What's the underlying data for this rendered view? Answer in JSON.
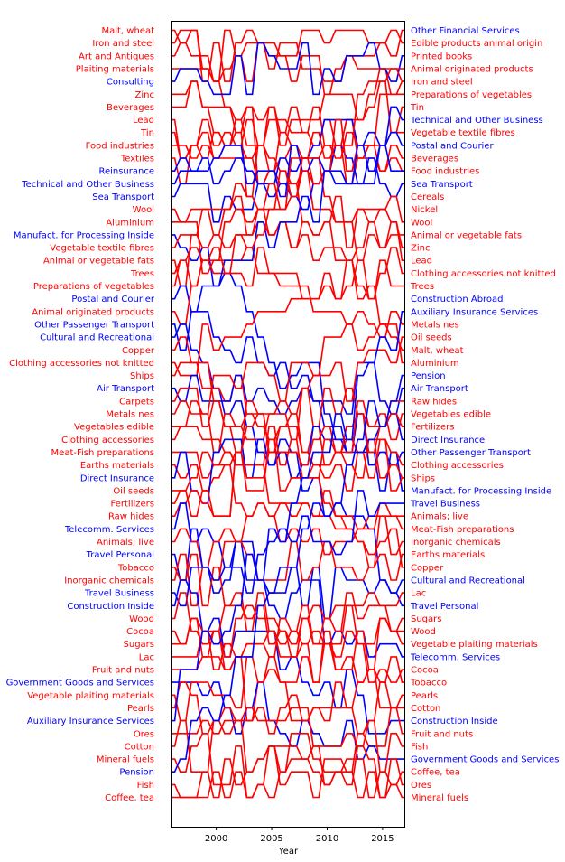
{
  "chart_data": {
    "type": "line",
    "title": "",
    "xlabel": "Year",
    "ylabel": "",
    "xlim": [
      1996,
      2017
    ],
    "x_ticks": [
      2000,
      2005,
      2010,
      2015
    ],
    "grid": false,
    "colors": {
      "goods": "#ff0000",
      "services": "#0000ff"
    },
    "left_labels": [
      {
        "text": "Malt, wheat",
        "kind": "goods"
      },
      {
        "text": "Iron and steel",
        "kind": "goods"
      },
      {
        "text": "Art and Antiques",
        "kind": "goods"
      },
      {
        "text": "Plaiting materials",
        "kind": "goods"
      },
      {
        "text": "Consulting",
        "kind": "services"
      },
      {
        "text": "Zinc",
        "kind": "goods"
      },
      {
        "text": "Beverages",
        "kind": "goods"
      },
      {
        "text": "Lead",
        "kind": "goods"
      },
      {
        "text": "Tin",
        "kind": "goods"
      },
      {
        "text": "Food industries",
        "kind": "goods"
      },
      {
        "text": "Textiles",
        "kind": "goods"
      },
      {
        "text": "Reinsurance",
        "kind": "services"
      },
      {
        "text": "Technical and Other Business",
        "kind": "services"
      },
      {
        "text": "Sea Transport",
        "kind": "services"
      },
      {
        "text": "Wool",
        "kind": "goods"
      },
      {
        "text": "Aluminium",
        "kind": "goods"
      },
      {
        "text": "Manufact. for Processing Inside",
        "kind": "services"
      },
      {
        "text": "Vegetable textile fibres",
        "kind": "goods"
      },
      {
        "text": "Animal or vegetable fats",
        "kind": "goods"
      },
      {
        "text": "Trees",
        "kind": "goods"
      },
      {
        "text": "Preparations of vegetables",
        "kind": "goods"
      },
      {
        "text": "Postal and Courier",
        "kind": "services"
      },
      {
        "text": "Animal originated products",
        "kind": "goods"
      },
      {
        "text": "Other Passenger Transport",
        "kind": "services"
      },
      {
        "text": "Cultural and Recreational",
        "kind": "services"
      },
      {
        "text": "Copper",
        "kind": "goods"
      },
      {
        "text": "Clothing accessories not knitted",
        "kind": "goods"
      },
      {
        "text": "Ships",
        "kind": "goods"
      },
      {
        "text": "Air Transport",
        "kind": "services"
      },
      {
        "text": "Carpets",
        "kind": "goods"
      },
      {
        "text": "Metals nes",
        "kind": "goods"
      },
      {
        "text": "Vegetables edible",
        "kind": "goods"
      },
      {
        "text": "Clothing accessories",
        "kind": "goods"
      },
      {
        "text": "Meat-Fish preparations",
        "kind": "goods"
      },
      {
        "text": "Earths materials",
        "kind": "goods"
      },
      {
        "text": "Direct Insurance",
        "kind": "services"
      },
      {
        "text": "Oil seeds",
        "kind": "goods"
      },
      {
        "text": "Fertilizers",
        "kind": "goods"
      },
      {
        "text": "Raw hides",
        "kind": "goods"
      },
      {
        "text": "Telecomm. Services",
        "kind": "services"
      },
      {
        "text": "Animals; live",
        "kind": "goods"
      },
      {
        "text": "Travel Personal",
        "kind": "services"
      },
      {
        "text": "Tobacco",
        "kind": "goods"
      },
      {
        "text": "Inorganic chemicals",
        "kind": "goods"
      },
      {
        "text": "Travel Business",
        "kind": "services"
      },
      {
        "text": "Construction Inside",
        "kind": "services"
      },
      {
        "text": "Wood",
        "kind": "goods"
      },
      {
        "text": "Cocoa",
        "kind": "goods"
      },
      {
        "text": "Sugars",
        "kind": "goods"
      },
      {
        "text": "Lac",
        "kind": "goods"
      },
      {
        "text": "Fruit and nuts",
        "kind": "goods"
      },
      {
        "text": "Government Goods and Services",
        "kind": "services"
      },
      {
        "text": "Vegetable plaiting materials",
        "kind": "goods"
      },
      {
        "text": "Pearls",
        "kind": "goods"
      },
      {
        "text": "Auxiliary Insurance Services",
        "kind": "services"
      },
      {
        "text": "Ores",
        "kind": "goods"
      },
      {
        "text": "Cotton",
        "kind": "goods"
      },
      {
        "text": "Mineral fuels",
        "kind": "goods"
      },
      {
        "text": "Pension",
        "kind": "services"
      },
      {
        "text": "Fish",
        "kind": "goods"
      },
      {
        "text": "Coffee, tea",
        "kind": "goods"
      }
    ],
    "right_labels": [
      {
        "text": "Other Financial Services",
        "kind": "services"
      },
      {
        "text": "Edible products animal origin",
        "kind": "goods"
      },
      {
        "text": "Printed books",
        "kind": "goods"
      },
      {
        "text": "Animal originated products",
        "kind": "goods"
      },
      {
        "text": "Iron and steel",
        "kind": "goods"
      },
      {
        "text": "Preparations of vegetables",
        "kind": "goods"
      },
      {
        "text": "Tin",
        "kind": "goods"
      },
      {
        "text": "Technical and Other Business",
        "kind": "services"
      },
      {
        "text": "Vegetable textile fibres",
        "kind": "goods"
      },
      {
        "text": "Postal and Courier",
        "kind": "services"
      },
      {
        "text": "Beverages",
        "kind": "goods"
      },
      {
        "text": "Food industries",
        "kind": "goods"
      },
      {
        "text": "Sea Transport",
        "kind": "services"
      },
      {
        "text": "Cereals",
        "kind": "goods"
      },
      {
        "text": "Nickel",
        "kind": "goods"
      },
      {
        "text": "Wool",
        "kind": "goods"
      },
      {
        "text": "Animal or vegetable fats",
        "kind": "goods"
      },
      {
        "text": "Zinc",
        "kind": "goods"
      },
      {
        "text": "Lead",
        "kind": "goods"
      },
      {
        "text": "Clothing accessories not knitted",
        "kind": "goods"
      },
      {
        "text": "Trees",
        "kind": "goods"
      },
      {
        "text": "Construction Abroad",
        "kind": "services"
      },
      {
        "text": "Auxiliary Insurance Services",
        "kind": "services"
      },
      {
        "text": "Metals nes",
        "kind": "goods"
      },
      {
        "text": "Oil seeds",
        "kind": "goods"
      },
      {
        "text": "Malt, wheat",
        "kind": "goods"
      },
      {
        "text": "Aluminium",
        "kind": "goods"
      },
      {
        "text": "Pension",
        "kind": "services"
      },
      {
        "text": "Air Transport",
        "kind": "services"
      },
      {
        "text": "Raw hides",
        "kind": "goods"
      },
      {
        "text": "Vegetables edible",
        "kind": "goods"
      },
      {
        "text": "Fertilizers",
        "kind": "goods"
      },
      {
        "text": "Direct Insurance",
        "kind": "services"
      },
      {
        "text": "Other Passenger Transport",
        "kind": "services"
      },
      {
        "text": "Clothing accessories",
        "kind": "goods"
      },
      {
        "text": "Ships",
        "kind": "goods"
      },
      {
        "text": "Manufact. for Processing Inside",
        "kind": "services"
      },
      {
        "text": "Travel Business",
        "kind": "services"
      },
      {
        "text": "Animals; live",
        "kind": "goods"
      },
      {
        "text": "Meat-Fish preparations",
        "kind": "goods"
      },
      {
        "text": "Inorganic chemicals",
        "kind": "goods"
      },
      {
        "text": "Earths materials",
        "kind": "goods"
      },
      {
        "text": "Copper",
        "kind": "goods"
      },
      {
        "text": "Cultural and Recreational",
        "kind": "services"
      },
      {
        "text": "Lac",
        "kind": "goods"
      },
      {
        "text": "Travel Personal",
        "kind": "services"
      },
      {
        "text": "Sugars",
        "kind": "goods"
      },
      {
        "text": "Wood",
        "kind": "goods"
      },
      {
        "text": "Vegetable plaiting materials",
        "kind": "goods"
      },
      {
        "text": "Telecomm. Services",
        "kind": "services"
      },
      {
        "text": "Cocoa",
        "kind": "goods"
      },
      {
        "text": "Tobacco",
        "kind": "goods"
      },
      {
        "text": "Pearls",
        "kind": "goods"
      },
      {
        "text": "Cotton",
        "kind": "goods"
      },
      {
        "text": "Construction Inside",
        "kind": "services"
      },
      {
        "text": "Fruit and nuts",
        "kind": "goods"
      },
      {
        "text": "Fish",
        "kind": "goods"
      },
      {
        "text": "Government Goods and Services",
        "kind": "services"
      },
      {
        "text": "Coffee, tea",
        "kind": "goods"
      },
      {
        "text": "Ores",
        "kind": "goods"
      },
      {
        "text": "Mineral fuels",
        "kind": "goods"
      }
    ]
  }
}
